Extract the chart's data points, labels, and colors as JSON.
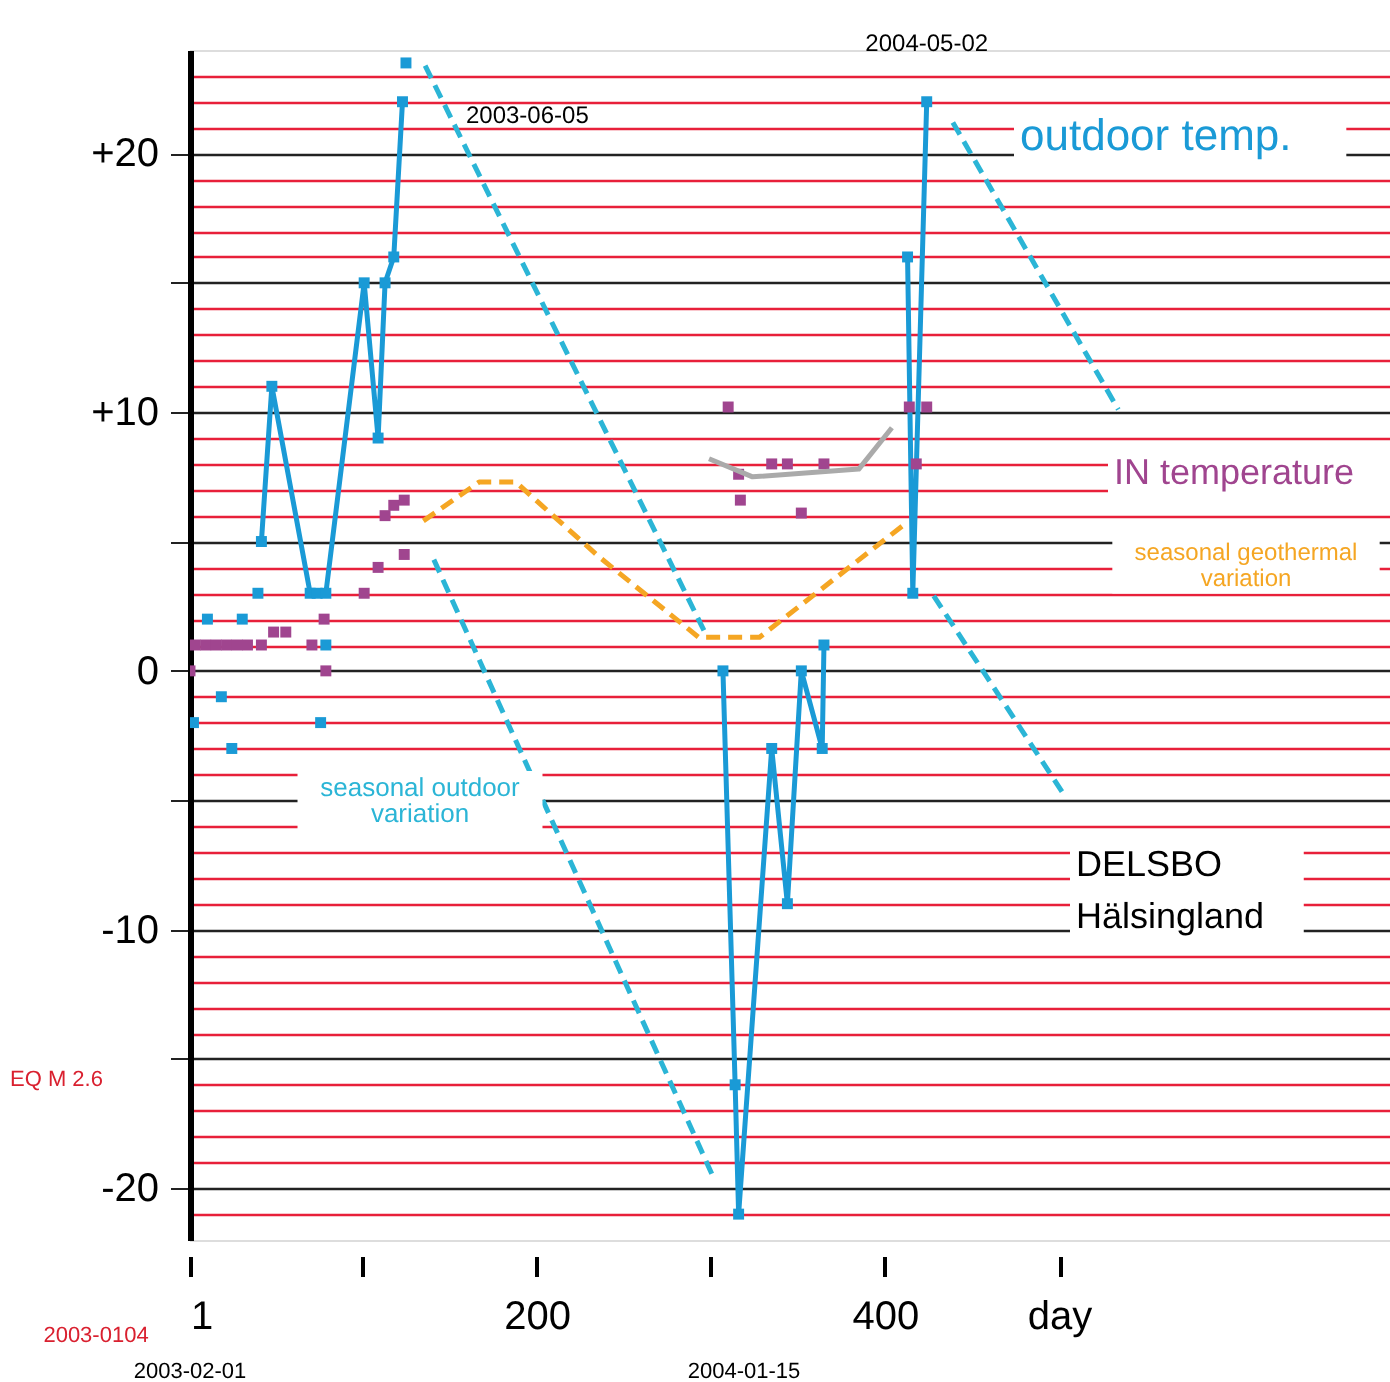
{
  "chart_data": {
    "type": "line",
    "xlim": [
      1,
      690
    ],
    "ylim": [
      -22,
      24
    ],
    "xticks": [
      1,
      {
        "value": 100,
        "label": null
      },
      200,
      {
        "value": 300,
        "label": null
      },
      400,
      {
        "value": 500,
        "label": "day"
      }
    ],
    "yticks": [
      {
        "value": -21,
        "label": null
      },
      -20,
      {
        "value": -19,
        "label": null
      },
      {
        "value": -18,
        "label": null
      },
      {
        "value": -17,
        "label": null
      },
      {
        "value": -16,
        "label": null
      },
      {
        "value": -15,
        "label": null
      },
      {
        "value": -14,
        "label": null
      },
      {
        "value": -13,
        "label": null
      },
      {
        "value": -12,
        "label": null
      },
      {
        "value": -11,
        "label": null
      },
      -10,
      {
        "value": -9,
        "label": null
      },
      {
        "value": -8,
        "label": null
      },
      {
        "value": -7,
        "label": null
      },
      {
        "value": -6,
        "label": null
      },
      {
        "value": -5,
        "label": null
      },
      {
        "value": -4,
        "label": null
      },
      {
        "value": -3,
        "label": null
      },
      {
        "value": -2,
        "label": null
      },
      {
        "value": -1,
        "label": null
      },
      0,
      {
        "value": 1,
        "label": null
      },
      {
        "value": 2,
        "label": null
      },
      {
        "value": 3,
        "label": null
      },
      {
        "value": 4,
        "label": null
      },
      {
        "value": 5,
        "label": null
      },
      {
        "value": 6,
        "label": null
      },
      {
        "value": 7,
        "label": null
      },
      {
        "value": 8,
        "label": null
      },
      {
        "value": 9,
        "label": null
      },
      {
        "value": 10,
        "label": "+10"
      },
      {
        "value": 11,
        "label": null
      },
      {
        "value": 12,
        "label": null
      },
      {
        "value": 13,
        "label": null
      },
      {
        "value": 14,
        "label": null
      },
      {
        "value": 15,
        "label": null
      },
      {
        "value": 16,
        "label": null
      },
      {
        "value": 17,
        "label": null
      },
      {
        "value": 18,
        "label": null
      },
      {
        "value": 19,
        "label": null
      },
      {
        "value": 20,
        "label": "+20"
      },
      {
        "value": 21,
        "label": null
      },
      {
        "value": 22,
        "label": null
      },
      {
        "value": 23,
        "label": null
      }
    ],
    "grid": "y",
    "series": [
      {
        "name": "outdoor temp.",
        "type": "line",
        "color": "#1a9ad6",
        "marker": "square",
        "line_style": "solid",
        "x": [
          42,
          48,
          70,
          74,
          79,
          101,
          109,
          113,
          118,
          123
        ],
        "values": [
          5,
          11,
          3,
          3,
          3,
          15,
          9,
          15,
          16,
          22
        ]
      },
      {
        "type": "scatter",
        "color": "#1a9ad6",
        "marker": "square",
        "x": [
          3,
          11,
          19,
          25,
          31,
          40,
          76,
          79,
          125
        ],
        "values": [
          -2,
          2,
          -1,
          -3,
          2,
          3,
          -2,
          1,
          23.5
        ]
      },
      {
        "type": "line",
        "color": "#1a9ad6",
        "marker": "square",
        "line_style": "solid",
        "x": [
          307,
          314,
          316,
          335,
          344,
          352,
          364,
          365
        ],
        "values": [
          0,
          -16,
          -21,
          -3,
          -9,
          0,
          -3,
          1
        ]
      },
      {
        "type": "line",
        "color": "#1a9ad6",
        "marker": "square",
        "line_style": "solid",
        "x": [
          413,
          416,
          424
        ],
        "values": [
          16,
          3,
          22
        ]
      },
      {
        "name": "IN temperature",
        "type": "scatter",
        "color": "#a0458f",
        "marker": "square",
        "x": [
          1,
          4,
          10,
          16,
          22,
          28,
          34,
          42,
          49,
          56,
          71,
          78,
          79,
          101,
          109,
          113,
          118,
          124,
          124,
          310,
          316,
          317,
          335,
          344,
          352,
          365,
          414,
          418,
          424
        ],
        "values": [
          0,
          1,
          1,
          1,
          1,
          1,
          1,
          1,
          1.5,
          1.5,
          1,
          2,
          0,
          3,
          4,
          6,
          6.4,
          6.6,
          4.5,
          10.2,
          7.6,
          6.6,
          8,
          8,
          6.1,
          8,
          10.2,
          8,
          10.2
        ]
      },
      {
        "type": "line",
        "color": "#aaaaaa",
        "marker": "none",
        "line_style": "solid",
        "x": [
          299,
          324,
          385,
          404
        ],
        "values": [
          8.2,
          7.5,
          7.8,
          9.4
        ]
      },
      {
        "name": "seasonal geothermal variation",
        "type": "line",
        "color": "#f5a623",
        "marker": "none",
        "line_style": "dashed",
        "x": [
          135,
          167,
          188,
          236,
          293,
          328,
          410
        ],
        "values": [
          5.8,
          7.3,
          7.3,
          4.4,
          1.3,
          1.3,
          5.6
        ]
      },
      {
        "name": "seasonal outdoor variation",
        "type": "line",
        "color": "#2bb5d6",
        "marker": "none",
        "line_style": "dashed",
        "x": [
          136,
          298
        ],
        "values": [
          23.4,
          1.3
        ]
      },
      {
        "type": "line",
        "color": "#2bb5d6",
        "marker": "none",
        "line_style": "dashed",
        "x": [
          141,
          301
        ],
        "values": [
          4.3,
          -19.5
        ]
      },
      {
        "type": "line",
        "color": "#2bb5d6",
        "marker": "none",
        "line_style": "dashed",
        "x": [
          439,
          534
        ],
        "values": [
          21.2,
          10.1
        ]
      },
      {
        "type": "line",
        "color": "#2bb5d6",
        "marker": "none",
        "line_style": "dashed",
        "x": [
          428,
          502
        ],
        "values": [
          2.9,
          -4.7
        ]
      }
    ],
    "annotations": [
      {
        "text": "2003-06-05",
        "x": 125,
        "y": 23.5
      },
      {
        "text": "2004-05-02",
        "x": 424,
        "y": 22.2
      },
      "DELSBO Hälsingland",
      "EQ M 2.6",
      "2003-0104",
      "2003-02-01",
      "2004-01-15"
    ]
  }
}
